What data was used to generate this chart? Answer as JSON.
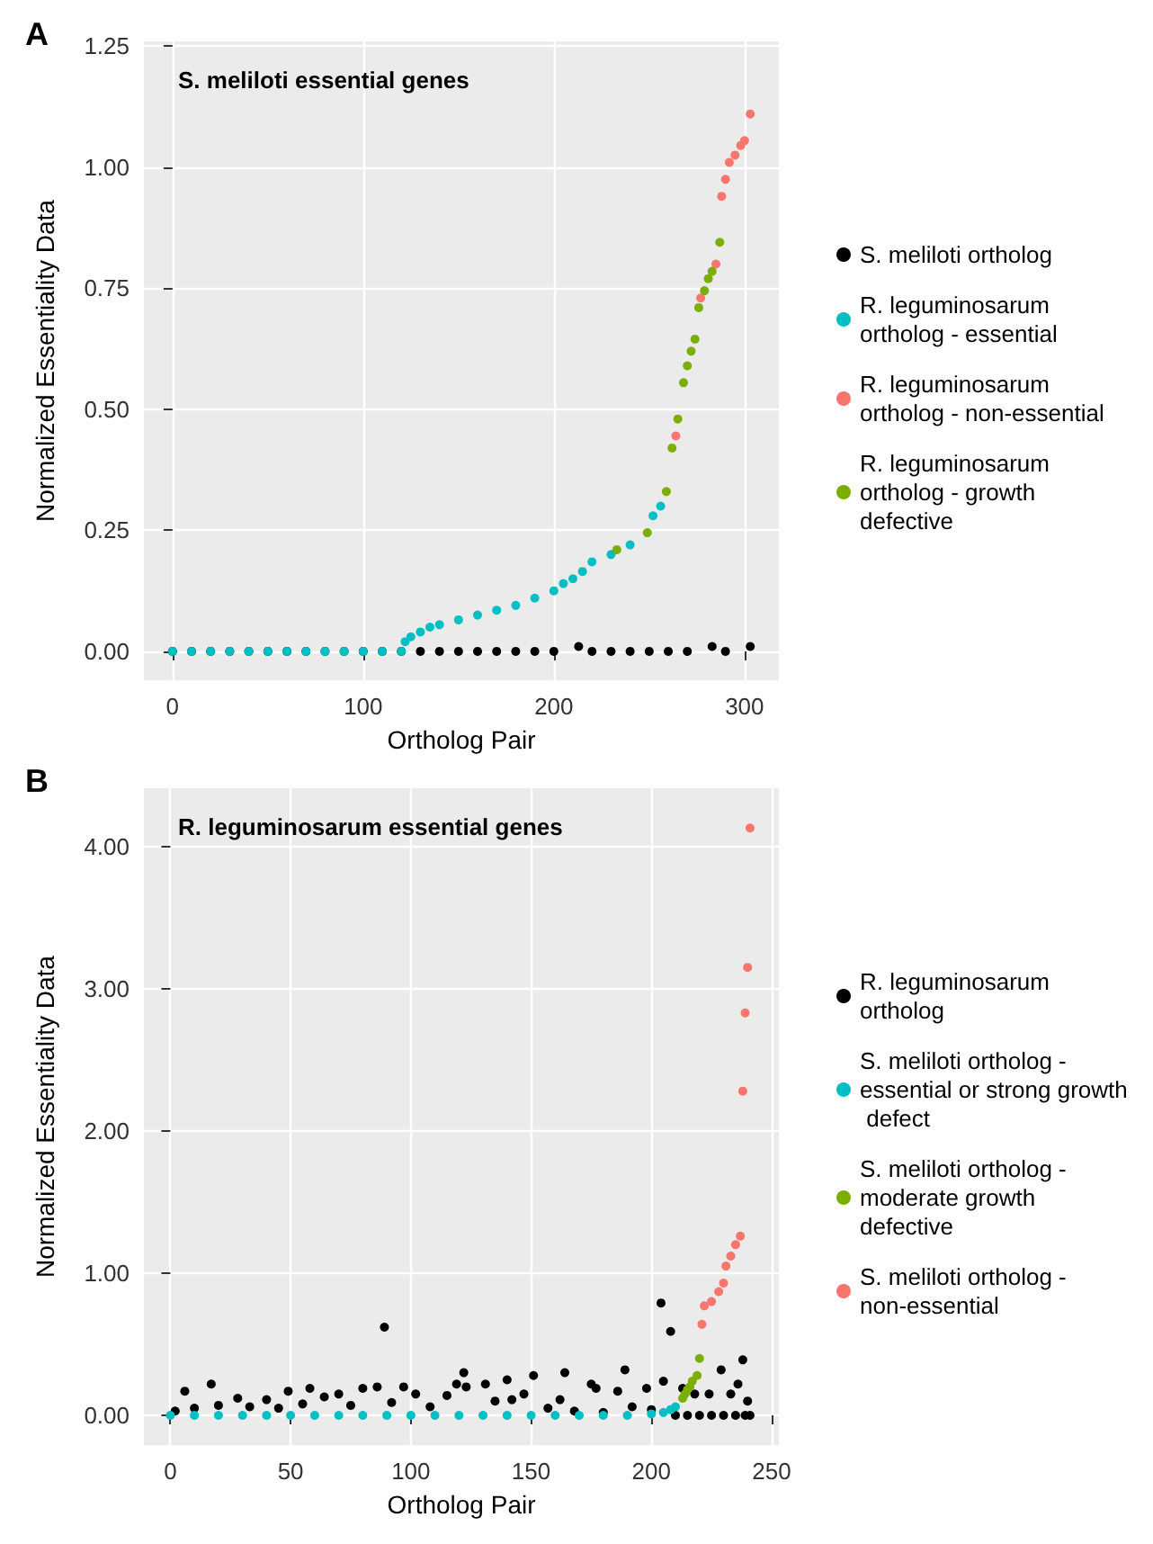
{
  "chart_data": [
    {
      "type": "scatter",
      "title": "S. meliloti essential genes",
      "annotations": [
        "A"
      ],
      "xlabel": "Ortholog Pair",
      "ylabel": "Normalized Essentiality Data",
      "xlim": [
        -15,
        318
      ],
      "xticks": [
        0,
        100,
        200,
        300
      ],
      "ylim": [
        -0.06,
        1.26
      ],
      "yticks": [
        {
          "value": 0,
          "label": "0.00"
        },
        {
          "value": 0.25,
          "label": "0.25"
        },
        {
          "value": 0.5,
          "label": "0.50"
        },
        {
          "value": 0.75,
          "label": "0.75"
        },
        {
          "value": 1,
          "label": "1.00"
        },
        {
          "value": 1.25,
          "label": "1.25"
        }
      ],
      "grid": true,
      "legend": "right",
      "marker": "circle",
      "series": [
        {
          "name": "S. meliloti ortholog",
          "color": "#000000",
          "x": [
            0,
            10,
            20,
            30,
            40,
            50,
            60,
            70,
            80,
            90,
            100,
            110,
            120,
            130,
            140,
            150,
            160,
            170,
            180,
            190,
            200,
            213,
            220,
            230,
            240,
            250,
            260,
            270,
            283,
            290,
            303
          ],
          "values": [
            0,
            0,
            0,
            0,
            0,
            0,
            0,
            0,
            0,
            0,
            0,
            0,
            0,
            0,
            0,
            0,
            0,
            0,
            0,
            0,
            0,
            0.01,
            0,
            0,
            0,
            0,
            0,
            0,
            0.01,
            0,
            0.01
          ]
        },
        {
          "name": "R. leguminosarum ortholog - essential",
          "color": "#00bfc4",
          "x": [
            0,
            10,
            20,
            30,
            40,
            50,
            60,
            70,
            80,
            90,
            100,
            110,
            120,
            122,
            125,
            130,
            135,
            140,
            150,
            160,
            170,
            180,
            190,
            200,
            205,
            210,
            215,
            220,
            230,
            240,
            252,
            256
          ],
          "values": [
            0,
            0,
            0,
            0,
            0,
            0,
            0,
            0,
            0,
            0,
            0,
            0,
            0,
            0.02,
            0.03,
            0.04,
            0.05,
            0.055,
            0.065,
            0.075,
            0.085,
            0.095,
            0.11,
            0.125,
            0.14,
            0.15,
            0.165,
            0.185,
            0.2,
            0.22,
            0.28,
            0.3
          ]
        },
        {
          "name": "R. leguminosarum ortholog - non-essential",
          "color": "#f8766d",
          "x": [
            264,
            277,
            285,
            288,
            290,
            292,
            295,
            298,
            300,
            303
          ],
          "values": [
            0.445,
            0.73,
            0.8,
            0.94,
            0.975,
            1.01,
            1.025,
            1.045,
            1.055,
            1.11
          ]
        },
        {
          "name": "R. leguminosarum ortholog - growth defective",
          "color": "#7cae00",
          "x": [
            233,
            249,
            259,
            262,
            265,
            268,
            270,
            272,
            274,
            276,
            279,
            281,
            283,
            287
          ],
          "values": [
            0.21,
            0.245,
            0.33,
            0.42,
            0.48,
            0.555,
            0.59,
            0.62,
            0.645,
            0.71,
            0.745,
            0.77,
            0.785,
            0.845
          ]
        }
      ]
    },
    {
      "type": "scatter",
      "title": "R. leguminosarum essential genes",
      "annotations": [
        "B"
      ],
      "xlabel": "Ortholog Pair",
      "ylabel": "Normalized Essentiality Data",
      "xlim": [
        -11,
        253
      ],
      "xticks": [
        0,
        50,
        100,
        150,
        200,
        250
      ],
      "ylim": [
        -0.21,
        4.41
      ],
      "yticks": [
        {
          "value": 0,
          "label": "0.00"
        },
        {
          "value": 1,
          "label": "1.00"
        },
        {
          "value": 2,
          "label": "2.00"
        },
        {
          "value": 3,
          "label": "3.00"
        },
        {
          "value": 4,
          "label": "4.00"
        }
      ],
      "grid": true,
      "legend": "right",
      "marker": "circle",
      "series": [
        {
          "name": "R. leguminosarum ortholog",
          "color": "#000000",
          "x": [
            2,
            6,
            10,
            17,
            20,
            28,
            33,
            40,
            45,
            49,
            55,
            58,
            64,
            70,
            75,
            80,
            86,
            89,
            92,
            97,
            102,
            108,
            115,
            119,
            122,
            123,
            131,
            135,
            140,
            142,
            147,
            151,
            157,
            162,
            164,
            168,
            175,
            177,
            180,
            186,
            189,
            192,
            198,
            200,
            204,
            205,
            208,
            210,
            213,
            215,
            218,
            220,
            224,
            225,
            229,
            230,
            233,
            235,
            236,
            238,
            239,
            240,
            241
          ],
          "values": [
            0.03,
            0.17,
            0.05,
            0.22,
            0.07,
            0.12,
            0.06,
            0.11,
            0.05,
            0.17,
            0.08,
            0.19,
            0.13,
            0.15,
            0.07,
            0.19,
            0.2,
            0.62,
            0.09,
            0.2,
            0.15,
            0.06,
            0.14,
            0.22,
            0.3,
            0.2,
            0.22,
            0.1,
            0.25,
            0.11,
            0.15,
            0.28,
            0.05,
            0.11,
            0.3,
            0.03,
            0.22,
            0.19,
            0.02,
            0.17,
            0.32,
            0.06,
            0.19,
            0.04,
            0.79,
            0.24,
            0.59,
            0,
            0.19,
            0,
            0.15,
            0,
            0.15,
            0,
            0.32,
            0,
            0.15,
            0,
            0.22,
            0.39,
            0,
            0.1,
            0
          ]
        },
        {
          "name": "S. meliloti ortholog - essential or strong growth defect",
          "color": "#00bfc4",
          "x": [
            0,
            10,
            20,
            30,
            40,
            50,
            60,
            70,
            80,
            90,
            100,
            110,
            120,
            130,
            140,
            150,
            160,
            170,
            180,
            190,
            200,
            205,
            208,
            210
          ],
          "values": [
            0,
            0,
            0,
            0,
            0,
            0,
            0,
            0,
            0,
            0,
            0,
            0,
            0,
            0,
            0,
            0,
            0,
            0,
            0,
            0,
            0.01,
            0.02,
            0.04,
            0.06
          ]
        },
        {
          "name": "S. meliloti ortholog - moderate growth defective",
          "color": "#7cae00",
          "x": [
            213,
            214,
            215,
            216,
            217,
            219,
            220
          ],
          "values": [
            0.12,
            0.15,
            0.18,
            0.2,
            0.24,
            0.28,
            0.4
          ]
        },
        {
          "name": "S. meliloti ortholog - non-essential",
          "color": "#f8766d",
          "x": [
            221,
            222,
            225,
            228,
            230,
            231,
            233,
            235,
            237,
            238,
            239,
            240,
            241
          ],
          "values": [
            0.64,
            0.77,
            0.8,
            0.87,
            0.93,
            1.05,
            1.12,
            1.2,
            1.26,
            2.28,
            2.83,
            3.15,
            4.13
          ]
        }
      ]
    }
  ]
}
